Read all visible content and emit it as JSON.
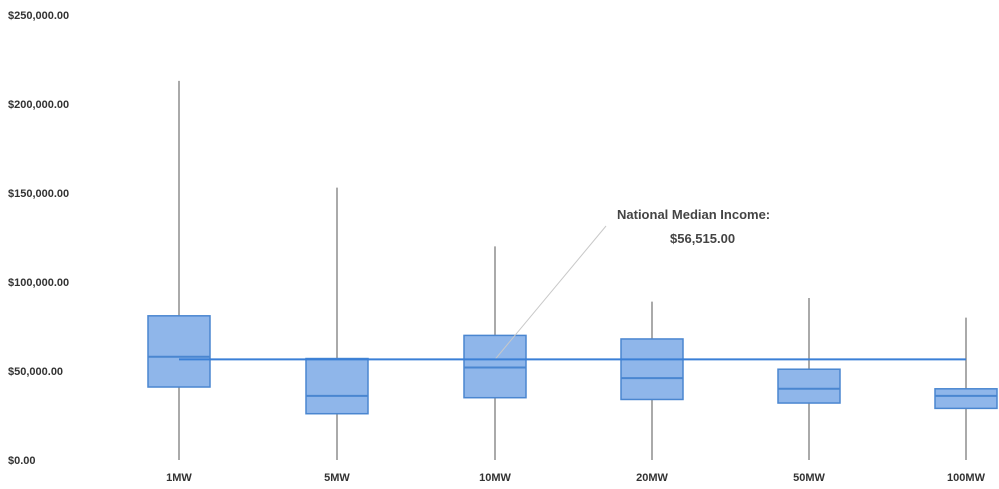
{
  "chart_data": {
    "type": "box",
    "categories": [
      "1MW",
      "5MW",
      "10MW",
      "20MW",
      "50MW",
      "100MW"
    ],
    "boxes": [
      {
        "category": "1MW",
        "min": 0,
        "q1": 41000,
        "median": 58000,
        "q3": 81000,
        "max": 213000
      },
      {
        "category": "5MW",
        "min": 0,
        "q1": 26000,
        "median": 36000,
        "q3": 57000,
        "max": 153000
      },
      {
        "category": "10MW",
        "min": 0,
        "q1": 35000,
        "median": 52000,
        "q3": 70000,
        "max": 120000
      },
      {
        "category": "20MW",
        "min": 0,
        "q1": 34000,
        "median": 46000,
        "q3": 68000,
        "max": 89000
      },
      {
        "category": "50MW",
        "min": 0,
        "q1": 32000,
        "median": 40000,
        "q3": 51000,
        "max": 91000
      },
      {
        "category": "100MW",
        "min": 0,
        "q1": 29000,
        "median": 36000,
        "q3": 40000,
        "max": 80000
      }
    ],
    "reference_line": {
      "value": 56515,
      "label_line1": "National Median Income:",
      "label_line2": "$56,515.00"
    },
    "y_ticks": [
      "$250,000.00",
      "$200,000.00",
      "$150,000.00",
      "$100,000.00",
      "$50,000.00",
      "$0.00"
    ],
    "y_tick_values": [
      250000,
      200000,
      150000,
      100000,
      50000,
      0
    ],
    "ylim": [
      0,
      250000
    ],
    "colors": {
      "box_fill": "#8fb6ea",
      "box_stroke": "#4a86d0",
      "reference_line": "#3a7fd6",
      "whisker": "#555555"
    }
  }
}
